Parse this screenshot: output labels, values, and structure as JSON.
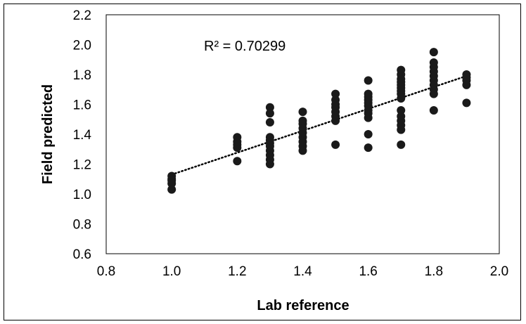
{
  "chart_data": {
    "type": "scatter",
    "title": "",
    "xlabel": "Lab reference",
    "ylabel": "Field predicted",
    "xlim": [
      0.8,
      2.0
    ],
    "ylim": [
      0.6,
      2.2
    ],
    "xticks": [
      "0.8",
      "1.0",
      "1.2",
      "1.4",
      "1.6",
      "1.8",
      "2.0"
    ],
    "yticks": [
      "0.6",
      "0.8",
      "1.0",
      "1.2",
      "1.4",
      "1.6",
      "1.8",
      "2.0",
      "2.2"
    ],
    "grid": false,
    "legend": "none",
    "annotation": "R² = 0.70299",
    "marker_color": "#1a1a1a",
    "trendline": {
      "style": "dotted",
      "x": [
        1.0,
        1.9
      ],
      "y": [
        1.13,
        1.79
      ]
    },
    "points": [
      {
        "x": 1.0,
        "y": 1.03
      },
      {
        "x": 1.0,
        "y": 1.07
      },
      {
        "x": 1.0,
        "y": 1.09
      },
      {
        "x": 1.0,
        "y": 1.1
      },
      {
        "x": 1.0,
        "y": 1.12
      },
      {
        "x": 1.2,
        "y": 1.22
      },
      {
        "x": 1.2,
        "y": 1.31
      },
      {
        "x": 1.2,
        "y": 1.33
      },
      {
        "x": 1.2,
        "y": 1.35
      },
      {
        "x": 1.2,
        "y": 1.38
      },
      {
        "x": 1.3,
        "y": 1.2
      },
      {
        "x": 1.3,
        "y": 1.23
      },
      {
        "x": 1.3,
        "y": 1.26
      },
      {
        "x": 1.3,
        "y": 1.29
      },
      {
        "x": 1.3,
        "y": 1.32
      },
      {
        "x": 1.3,
        "y": 1.34
      },
      {
        "x": 1.3,
        "y": 1.36
      },
      {
        "x": 1.3,
        "y": 1.38
      },
      {
        "x": 1.3,
        "y": 1.48
      },
      {
        "x": 1.3,
        "y": 1.54
      },
      {
        "x": 1.3,
        "y": 1.58
      },
      {
        "x": 1.4,
        "y": 1.29
      },
      {
        "x": 1.4,
        "y": 1.32
      },
      {
        "x": 1.4,
        "y": 1.35
      },
      {
        "x": 1.4,
        "y": 1.38
      },
      {
        "x": 1.4,
        "y": 1.41
      },
      {
        "x": 1.4,
        "y": 1.44
      },
      {
        "x": 1.4,
        "y": 1.47
      },
      {
        "x": 1.4,
        "y": 1.49
      },
      {
        "x": 1.4,
        "y": 1.55
      },
      {
        "x": 1.5,
        "y": 1.33
      },
      {
        "x": 1.5,
        "y": 1.49
      },
      {
        "x": 1.5,
        "y": 1.52
      },
      {
        "x": 1.5,
        "y": 1.55
      },
      {
        "x": 1.5,
        "y": 1.58
      },
      {
        "x": 1.5,
        "y": 1.6
      },
      {
        "x": 1.5,
        "y": 1.63
      },
      {
        "x": 1.5,
        "y": 1.67
      },
      {
        "x": 1.6,
        "y": 1.31
      },
      {
        "x": 1.6,
        "y": 1.4
      },
      {
        "x": 1.6,
        "y": 1.51
      },
      {
        "x": 1.6,
        "y": 1.54
      },
      {
        "x": 1.6,
        "y": 1.56
      },
      {
        "x": 1.6,
        "y": 1.59
      },
      {
        "x": 1.6,
        "y": 1.61
      },
      {
        "x": 1.6,
        "y": 1.63
      },
      {
        "x": 1.6,
        "y": 1.65
      },
      {
        "x": 1.6,
        "y": 1.67
      },
      {
        "x": 1.6,
        "y": 1.76
      },
      {
        "x": 1.7,
        "y": 1.33
      },
      {
        "x": 1.7,
        "y": 1.43
      },
      {
        "x": 1.7,
        "y": 1.46
      },
      {
        "x": 1.7,
        "y": 1.49
      },
      {
        "x": 1.7,
        "y": 1.52
      },
      {
        "x": 1.7,
        "y": 1.56
      },
      {
        "x": 1.7,
        "y": 1.64
      },
      {
        "x": 1.7,
        "y": 1.67
      },
      {
        "x": 1.7,
        "y": 1.69
      },
      {
        "x": 1.7,
        "y": 1.71
      },
      {
        "x": 1.7,
        "y": 1.73
      },
      {
        "x": 1.7,
        "y": 1.75
      },
      {
        "x": 1.7,
        "y": 1.77
      },
      {
        "x": 1.7,
        "y": 1.8
      },
      {
        "x": 1.7,
        "y": 1.83
      },
      {
        "x": 1.8,
        "y": 1.56
      },
      {
        "x": 1.8,
        "y": 1.67
      },
      {
        "x": 1.8,
        "y": 1.7
      },
      {
        "x": 1.8,
        "y": 1.73
      },
      {
        "x": 1.8,
        "y": 1.76
      },
      {
        "x": 1.8,
        "y": 1.79
      },
      {
        "x": 1.8,
        "y": 1.82
      },
      {
        "x": 1.8,
        "y": 1.85
      },
      {
        "x": 1.8,
        "y": 1.88
      },
      {
        "x": 1.8,
        "y": 1.95
      },
      {
        "x": 1.9,
        "y": 1.61
      },
      {
        "x": 1.9,
        "y": 1.73
      },
      {
        "x": 1.9,
        "y": 1.76
      },
      {
        "x": 1.9,
        "y": 1.78
      },
      {
        "x": 1.9,
        "y": 1.8
      }
    ]
  }
}
